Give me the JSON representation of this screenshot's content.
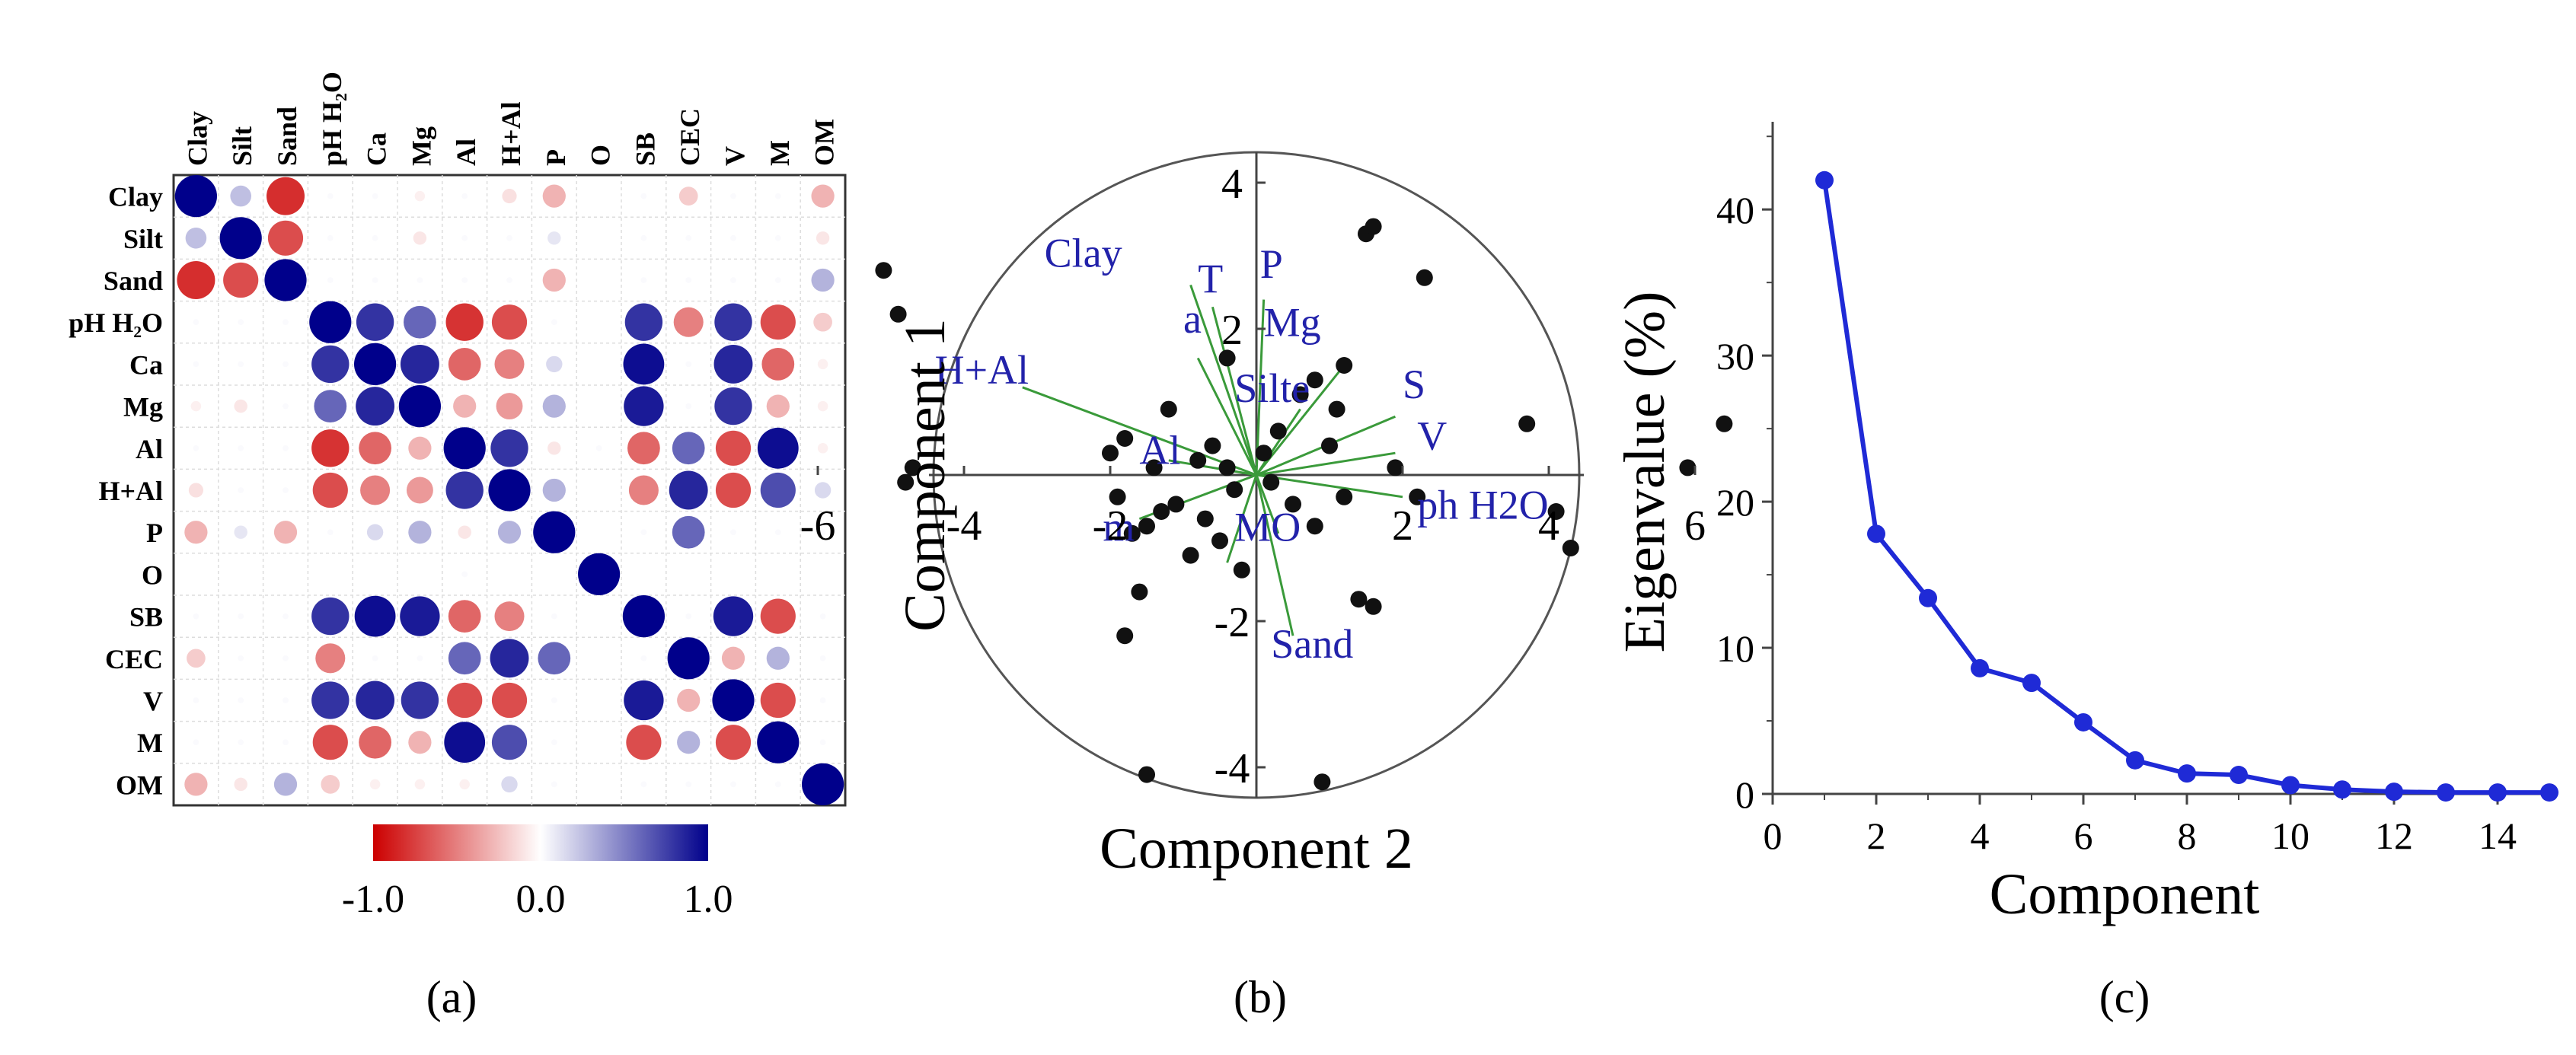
{
  "chart_data": [
    {
      "type": "heatmap",
      "panel_label": "(a)",
      "variables": [
        "Clay",
        "Silt",
        "Sand",
        "pH H₂O",
        "Ca",
        "Mg",
        "Al",
        "H+Al",
        "P",
        "O",
        "SB",
        "CEC",
        "V",
        "M",
        "OM"
      ],
      "values": [
        [
          1.0,
          0.25,
          -0.82,
          0.02,
          0.02,
          -0.06,
          0.02,
          -0.12,
          -0.3,
          0.0,
          0.02,
          -0.2,
          0.02,
          0.02,
          -0.3
        ],
        [
          0.25,
          1.0,
          -0.7,
          0.02,
          0.02,
          -0.1,
          0.02,
          0.02,
          0.1,
          0.0,
          0.02,
          0.02,
          0.02,
          0.02,
          -0.1
        ],
        [
          -0.82,
          -0.7,
          1.0,
          0.02,
          0.02,
          0.02,
          0.02,
          0.02,
          -0.3,
          0.0,
          0.02,
          0.02,
          0.02,
          0.02,
          0.3
        ],
        [
          0.02,
          0.02,
          0.02,
          1.0,
          0.8,
          0.6,
          -0.8,
          -0.7,
          0.02,
          0.0,
          0.8,
          -0.5,
          0.8,
          -0.7,
          -0.2
        ],
        [
          0.02,
          0.02,
          0.02,
          0.8,
          1.0,
          0.85,
          -0.6,
          -0.5,
          0.15,
          0.0,
          0.95,
          0.02,
          0.85,
          -0.6,
          -0.06
        ],
        [
          -0.06,
          -0.1,
          0.02,
          0.6,
          0.85,
          1.0,
          -0.3,
          -0.4,
          0.3,
          0.0,
          0.9,
          0.02,
          0.8,
          -0.3,
          -0.06
        ],
        [
          0.02,
          0.02,
          0.02,
          -0.8,
          -0.6,
          -0.3,
          1.0,
          0.8,
          -0.1,
          0.02,
          -0.6,
          0.6,
          -0.7,
          0.95,
          -0.06
        ],
        [
          -0.12,
          0.02,
          0.02,
          -0.7,
          -0.5,
          -0.4,
          0.8,
          1.0,
          0.3,
          0.0,
          -0.5,
          0.85,
          -0.7,
          0.7,
          0.15
        ],
        [
          -0.3,
          0.1,
          -0.3,
          0.02,
          0.15,
          0.3,
          -0.1,
          0.3,
          1.0,
          0.0,
          0.02,
          0.6,
          0.02,
          0.02,
          0.02
        ],
        [
          0.0,
          0.0,
          0.0,
          0.0,
          0.0,
          0.0,
          0.02,
          0.0,
          0.0,
          1.0,
          0.0,
          0.0,
          0.0,
          0.0,
          0.0
        ],
        [
          0.02,
          0.02,
          0.02,
          0.8,
          0.95,
          0.9,
          -0.6,
          -0.5,
          0.02,
          0.0,
          1.0,
          0.02,
          0.9,
          -0.7,
          0.02
        ],
        [
          -0.2,
          0.02,
          0.02,
          -0.5,
          0.02,
          0.02,
          0.6,
          0.85,
          0.6,
          0.0,
          0.02,
          1.0,
          -0.3,
          0.3,
          0.02
        ],
        [
          0.02,
          0.02,
          0.02,
          0.8,
          0.85,
          0.8,
          -0.7,
          -0.7,
          0.02,
          0.0,
          0.9,
          -0.3,
          1.0,
          -0.7,
          0.02
        ],
        [
          0.02,
          0.02,
          0.02,
          -0.7,
          -0.6,
          -0.3,
          0.95,
          0.7,
          0.02,
          0.0,
          -0.7,
          0.3,
          -0.7,
          1.0,
          0.02
        ],
        [
          -0.3,
          -0.1,
          0.3,
          -0.2,
          -0.06,
          -0.06,
          -0.06,
          0.15,
          0.02,
          0.0,
          0.02,
          0.02,
          0.02,
          0.02,
          1.0
        ]
      ],
      "colorbar": {
        "min": -1.0,
        "max": 1.0,
        "tick_labels": [
          "-1.0",
          "0.0",
          "1.0"
        ],
        "negative_color": "#cc0000",
        "positive_color": "#00008b"
      }
    },
    {
      "type": "scatter",
      "panel_label": "(b)",
      "ylabel": "Component 1",
      "xlabel": "Component 2",
      "xlim": [
        -6.5,
        6.5
      ],
      "ylim": [
        -4.5,
        4.5
      ],
      "x_ticks": [
        -6,
        -4,
        -2,
        2,
        4,
        6
      ],
      "x_tick_labels": [
        "-6",
        "-4",
        "-2",
        "2",
        "4",
        "6"
      ],
      "y_ticks": [
        4,
        2,
        -2,
        -4
      ],
      "y_tick_labels": [
        "4",
        "2",
        "-2",
        "-4"
      ],
      "points": [
        [
          -5.1,
          2.8
        ],
        [
          -4.9,
          2.2
        ],
        [
          -4.8,
          -0.1
        ],
        [
          -4.7,
          0.1
        ],
        [
          -2.0,
          0.3
        ],
        [
          -1.9,
          -0.3
        ],
        [
          -1.8,
          0.5
        ],
        [
          -1.7,
          -0.8
        ],
        [
          -1.6,
          -1.6
        ],
        [
          -1.5,
          -0.7
        ],
        [
          -1.4,
          0.1
        ],
        [
          -1.3,
          -0.5
        ],
        [
          -1.2,
          0.9
        ],
        [
          -1.1,
          -0.4
        ],
        [
          -0.9,
          -1.1
        ],
        [
          -0.8,
          0.2
        ],
        [
          -0.7,
          -0.6
        ],
        [
          -0.6,
          0.4
        ],
        [
          -0.5,
          -0.9
        ],
        [
          -0.4,
          0.1
        ],
        [
          -0.3,
          -0.2
        ],
        [
          -0.2,
          -1.3
        ],
        [
          0.1,
          0.3
        ],
        [
          0.2,
          -0.1
        ],
        [
          0.3,
          0.6
        ],
        [
          0.5,
          -0.4
        ],
        [
          0.6,
          1.1
        ],
        [
          0.8,
          -0.7
        ],
        [
          1.0,
          0.4
        ],
        [
          1.2,
          -0.3
        ],
        [
          2.3,
          2.7
        ],
        [
          1.4,
          -1.7
        ],
        [
          1.6,
          -1.8
        ],
        [
          -1.8,
          -2.2
        ],
        [
          -1.5,
          -4.1
        ],
        [
          0.9,
          -4.2
        ],
        [
          -0.4,
          1.6
        ],
        [
          0.8,
          1.3
        ],
        [
          1.2,
          1.5
        ],
        [
          1.5,
          3.3
        ],
        [
          1.6,
          3.4
        ],
        [
          1.9,
          0.1
        ],
        [
          3.7,
          0.7
        ],
        [
          5.9,
          0.1
        ],
        [
          6.4,
          0.7
        ],
        [
          4.3,
          -1.0
        ],
        [
          4.1,
          -0.5
        ],
        [
          2.2,
          -0.3
        ],
        [
          1.1,
          0.9
        ]
      ],
      "labels": [
        {
          "text": "Clay",
          "x": -2.9,
          "y": 2.85
        },
        {
          "text": "T",
          "x": -0.8,
          "y": 2.5
        },
        {
          "text": "P",
          "x": 0.05,
          "y": 2.7
        },
        {
          "text": "a",
          "x": -1.0,
          "y": 1.95
        },
        {
          "text": "Mg",
          "x": 0.1,
          "y": 1.9
        },
        {
          "text": "H+Al",
          "x": -4.4,
          "y": 1.25
        },
        {
          "text": "S",
          "x": 2.0,
          "y": 1.05
        },
        {
          "text": "Silte",
          "x": -0.3,
          "y": 1.0
        },
        {
          "text": "V",
          "x": 2.2,
          "y": 0.35
        },
        {
          "text": "Al",
          "x": -1.6,
          "y": 0.15
        },
        {
          "text": "m",
          "x": -2.1,
          "y": -0.9
        },
        {
          "text": "MO",
          "x": -0.3,
          "y": -0.9
        },
        {
          "text": "ph H2O",
          "x": 2.2,
          "y": -0.6
        },
        {
          "text": "Sand",
          "x": 0.2,
          "y": -2.5
        }
      ],
      "loadings": [
        [
          -0.9,
          2.6
        ],
        [
          -0.6,
          2.3
        ],
        [
          0.1,
          2.4
        ],
        [
          -0.8,
          1.6
        ],
        [
          1.2,
          1.5
        ],
        [
          -3.2,
          1.2
        ],
        [
          1.9,
          0.8
        ],
        [
          0.6,
          0.9
        ],
        [
          1.9,
          0.3
        ],
        [
          -1.2,
          0.2
        ],
        [
          -1.6,
          -0.6
        ],
        [
          0.3,
          -0.8
        ],
        [
          2.0,
          -0.3
        ],
        [
          0.5,
          -2.2
        ],
        [
          -0.4,
          -1.2
        ]
      ]
    },
    {
      "type": "line",
      "panel_label": "(c)",
      "xlabel": "Component",
      "ylabel": "Eigenvalue (%)",
      "xlim": [
        0,
        15
      ],
      "ylim": [
        0,
        46
      ],
      "x_ticks": [
        0,
        2,
        4,
        6,
        8,
        10,
        12,
        14
      ],
      "x_tick_labels": [
        "0",
        "2",
        "4",
        "6",
        "8",
        "10",
        "12",
        "14"
      ],
      "y_ticks": [
        0,
        10,
        20,
        30,
        40
      ],
      "y_tick_labels": [
        "0",
        "10",
        "20",
        "30",
        "40"
      ],
      "x": [
        1,
        2,
        3,
        4,
        5,
        6,
        7,
        8,
        9,
        10,
        11,
        12,
        13,
        14,
        15
      ],
      "y": [
        42.0,
        17.8,
        13.4,
        8.6,
        7.6,
        4.9,
        2.3,
        1.4,
        1.3,
        0.6,
        0.3,
        0.15,
        0.1,
        0.1,
        0.1
      ],
      "line_color": "#1f2ad6"
    }
  ]
}
